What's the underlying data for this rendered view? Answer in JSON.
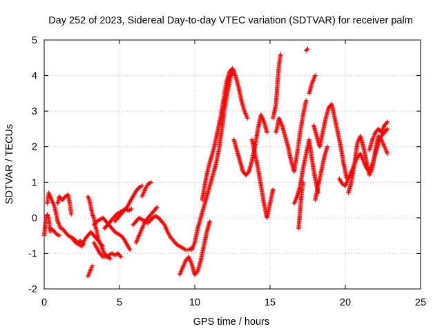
{
  "chart_data": {
    "type": "scatter",
    "title": "Day 252 of 2023, Sidereal Day-to-day VTEC variation (SDTVAR) for receiver palm",
    "xlabel": "GPS time / hours",
    "ylabel": "SDTVAR / TECUs",
    "xlim": [
      0,
      25
    ],
    "ylim": [
      -2,
      5
    ],
    "xticks": [
      0,
      5,
      10,
      15,
      20,
      25
    ],
    "yticks": [
      -2,
      -1,
      0,
      1,
      2,
      3,
      4,
      5
    ],
    "xtick_labels": [
      "0",
      "5",
      "10",
      "15",
      "20",
      "25"
    ],
    "ytick_labels": [
      "-2",
      "-1",
      "0",
      "1",
      "2",
      "3",
      "4",
      "5"
    ],
    "grid": true,
    "marker": "+",
    "color": "#ff0000",
    "series": [
      {
        "name": "t01",
        "points": [
          [
            0.0,
            -0.5
          ],
          [
            0.1,
            -0.1
          ],
          [
            0.2,
            0.1
          ],
          [
            0.3,
            0.0
          ],
          [
            0.4,
            -0.4
          ]
        ]
      },
      {
        "name": "t02",
        "points": [
          [
            0.2,
            0.4
          ],
          [
            0.3,
            0.7
          ],
          [
            0.5,
            0.5
          ],
          [
            0.7,
            0.3
          ],
          [
            0.9,
            -0.1
          ],
          [
            1.1,
            -0.3
          ]
        ]
      },
      {
        "name": "t03",
        "points": [
          [
            0.4,
            -0.3
          ],
          [
            0.6,
            -0.35
          ],
          [
            0.8,
            -0.45
          ],
          [
            1.0,
            -0.5
          ]
        ]
      },
      {
        "name": "t04",
        "points": [
          [
            0.9,
            0.4
          ],
          [
            1.0,
            0.6
          ],
          [
            1.2,
            0.5
          ],
          [
            1.4,
            0.6
          ],
          [
            1.6,
            0.65
          ],
          [
            1.7,
            0.4
          ],
          [
            1.8,
            0.1
          ]
        ]
      },
      {
        "name": "t05",
        "points": [
          [
            1.2,
            -0.3
          ],
          [
            1.4,
            -0.4
          ],
          [
            1.6,
            -0.5
          ],
          [
            1.8,
            -0.55
          ],
          [
            2.0,
            -0.6
          ],
          [
            2.2,
            -0.7
          ],
          [
            2.4,
            -0.65
          ],
          [
            2.6,
            -0.75
          ]
        ]
      },
      {
        "name": "t06",
        "points": [
          [
            1.9,
            -0.6
          ],
          [
            2.1,
            -0.7
          ],
          [
            2.3,
            -0.75
          ],
          [
            2.5,
            -0.8
          ],
          [
            2.7,
            -0.6
          ],
          [
            2.9,
            -0.5
          ],
          [
            3.1,
            -0.4
          ],
          [
            3.3,
            -0.5
          ],
          [
            3.5,
            -0.6
          ],
          [
            3.7,
            -0.7
          ],
          [
            3.9,
            -0.8
          ]
        ]
      },
      {
        "name": "t07",
        "points": [
          [
            2.9,
            0.6
          ],
          [
            3.0,
            0.5
          ],
          [
            3.1,
            0.3
          ],
          [
            3.2,
            0.1
          ],
          [
            3.3,
            0.0
          ],
          [
            3.4,
            -0.2
          ],
          [
            3.5,
            -0.4
          ],
          [
            3.6,
            -0.6
          ],
          [
            3.8,
            -0.8
          ],
          [
            4.0,
            -1.0
          ],
          [
            4.2,
            -1.1
          ],
          [
            4.4,
            -1.15
          ]
        ]
      },
      {
        "name": "t08",
        "points": [
          [
            3.3,
            -0.7
          ],
          [
            3.5,
            -0.85
          ],
          [
            3.7,
            -1.0
          ],
          [
            3.9,
            -1.1
          ],
          [
            4.1,
            -1.1
          ],
          [
            4.3,
            -1.05
          ],
          [
            4.5,
            -1.0
          ],
          [
            4.7,
            -1.05
          ],
          [
            4.9,
            -1.0
          ],
          [
            5.1,
            -1.1
          ]
        ]
      },
      {
        "name": "t09",
        "points": [
          [
            2.9,
            -1.65
          ],
          [
            3.0,
            -1.55
          ],
          [
            3.1,
            -1.45
          ],
          [
            3.2,
            -1.35
          ]
        ]
      },
      {
        "name": "t10",
        "points": [
          [
            3.3,
            -0.2
          ],
          [
            3.5,
            -0.1
          ],
          [
            3.7,
            -0.05
          ],
          [
            3.9,
            0.0
          ],
          [
            4.1,
            -0.1
          ],
          [
            4.3,
            -0.2
          ],
          [
            4.5,
            -0.3
          ],
          [
            4.7,
            -0.4
          ],
          [
            4.9,
            -0.45
          ],
          [
            5.1,
            -0.5
          ],
          [
            5.3,
            -0.6
          ],
          [
            5.5,
            -0.75
          ],
          [
            5.7,
            -0.9
          ]
        ]
      },
      {
        "name": "t11",
        "points": [
          [
            4.0,
            -0.3
          ],
          [
            4.2,
            -0.2
          ],
          [
            4.4,
            -0.1
          ],
          [
            4.6,
            0.0
          ],
          [
            4.8,
            0.1
          ],
          [
            5.0,
            0.15
          ],
          [
            5.2,
            0.2
          ],
          [
            5.4,
            0.25
          ],
          [
            5.6,
            0.2
          ],
          [
            5.8,
            0.25
          ]
        ]
      },
      {
        "name": "t12",
        "points": [
          [
            4.7,
            -0.1
          ],
          [
            4.9,
            0.0
          ],
          [
            5.1,
            0.1
          ],
          [
            5.3,
            0.2
          ],
          [
            5.5,
            0.3
          ],
          [
            5.7,
            0.45
          ],
          [
            5.9,
            0.6
          ],
          [
            6.1,
            0.75
          ],
          [
            6.3,
            0.85
          ],
          [
            6.5,
            0.9
          ]
        ]
      },
      {
        "name": "t13",
        "points": [
          [
            6.1,
            -0.7
          ],
          [
            6.3,
            -0.5
          ],
          [
            6.5,
            -0.3
          ],
          [
            6.7,
            -0.1
          ],
          [
            6.9,
            0.0
          ],
          [
            7.1,
            0.1
          ],
          [
            7.3,
            0.2
          ],
          [
            7.5,
            0.3
          ]
        ]
      },
      {
        "name": "t14",
        "points": [
          [
            6.5,
            0.6
          ],
          [
            6.7,
            0.8
          ],
          [
            6.9,
            0.95
          ],
          [
            7.1,
            1.0
          ]
        ]
      },
      {
        "name": "t15",
        "points": [
          [
            7.0,
            -0.1
          ],
          [
            7.2,
            0.0
          ],
          [
            7.4,
            0.05
          ],
          [
            7.6,
            0.0
          ],
          [
            7.8,
            -0.1
          ],
          [
            8.0,
            -0.2
          ],
          [
            8.2,
            -0.4
          ],
          [
            8.4,
            -0.55
          ],
          [
            8.6,
            -0.65
          ],
          [
            8.8,
            -0.75
          ],
          [
            9.0,
            -0.8
          ],
          [
            9.2,
            -0.85
          ],
          [
            9.4,
            -0.9
          ],
          [
            9.6,
            -0.9
          ],
          [
            9.8,
            -0.85
          ]
        ]
      },
      {
        "name": "t16",
        "points": [
          [
            5.9,
            -0.2
          ],
          [
            6.1,
            -0.1
          ],
          [
            6.3,
            0.0
          ],
          [
            6.5,
            -0.05
          ],
          [
            6.7,
            -0.1
          ],
          [
            6.9,
            -0.15
          ]
        ]
      },
      {
        "name": "t17",
        "points": [
          [
            9.0,
            -1.6
          ],
          [
            9.2,
            -1.4
          ],
          [
            9.4,
            -1.2
          ],
          [
            9.6,
            -1.1
          ],
          [
            9.8,
            -1.3
          ],
          [
            10.0,
            -1.6
          ],
          [
            10.2,
            -1.5
          ],
          [
            10.4,
            -1.2
          ],
          [
            10.6,
            -0.8
          ],
          [
            10.8,
            -0.4
          ],
          [
            11.0,
            -0.1
          ]
        ]
      },
      {
        "name": "t18",
        "points": [
          [
            9.8,
            -0.9
          ],
          [
            10.0,
            -0.7
          ],
          [
            10.2,
            -0.3
          ],
          [
            10.4,
            0.0
          ],
          [
            10.6,
            0.3
          ],
          [
            10.8,
            0.6
          ],
          [
            11.0,
            0.9
          ],
          [
            11.2,
            1.2
          ],
          [
            11.4,
            1.5
          ],
          [
            11.6,
            1.9
          ],
          [
            11.8,
            2.5
          ],
          [
            12.0,
            3.1
          ],
          [
            12.2,
            3.6
          ],
          [
            12.4,
            4.0
          ],
          [
            12.6,
            4.15
          ]
        ]
      },
      {
        "name": "t19",
        "points": [
          [
            10.5,
            0.5
          ],
          [
            10.7,
            1.0
          ],
          [
            10.9,
            1.4
          ],
          [
            11.1,
            1.7
          ],
          [
            11.3,
            2.0
          ],
          [
            11.5,
            2.4
          ],
          [
            11.7,
            2.8
          ],
          [
            11.9,
            3.3
          ],
          [
            12.1,
            3.8
          ],
          [
            12.3,
            4.1
          ],
          [
            12.5,
            4.2
          ],
          [
            12.7,
            4.0
          ],
          [
            12.9,
            3.7
          ],
          [
            13.1,
            3.3
          ],
          [
            13.3,
            3.0
          ],
          [
            13.5,
            2.8
          ]
        ]
      },
      {
        "name": "t20",
        "points": [
          [
            12.6,
            2.2
          ],
          [
            12.8,
            1.9
          ],
          [
            13.0,
            1.6
          ],
          [
            13.2,
            1.3
          ],
          [
            13.4,
            1.2
          ],
          [
            13.6,
            1.3
          ],
          [
            13.8,
            1.6
          ],
          [
            14.0,
            2.0
          ],
          [
            14.2,
            2.5
          ],
          [
            14.4,
            2.9
          ],
          [
            14.6,
            2.7
          ],
          [
            14.8,
            2.4
          ]
        ]
      },
      {
        "name": "t21",
        "points": [
          [
            13.8,
            2.2
          ],
          [
            14.0,
            1.8
          ],
          [
            14.2,
            1.4
          ],
          [
            14.4,
            0.9
          ],
          [
            14.6,
            0.4
          ],
          [
            14.8,
            0.0
          ],
          [
            15.0,
            0.4
          ],
          [
            15.2,
            0.8
          ]
        ]
      },
      {
        "name": "t22",
        "points": [
          [
            15.2,
            2.8
          ],
          [
            15.4,
            3.2
          ],
          [
            15.5,
            3.8
          ],
          [
            15.6,
            4.3
          ],
          [
            15.7,
            4.6
          ]
        ]
      },
      {
        "name": "t23",
        "points": [
          [
            15.4,
            2.4
          ],
          [
            15.6,
            2.8
          ],
          [
            15.8,
            2.6
          ],
          [
            16.0,
            2.3
          ],
          [
            16.2,
            2.0
          ],
          [
            16.4,
            1.6
          ],
          [
            16.6,
            1.3
          ],
          [
            16.8,
            1.8
          ],
          [
            17.0,
            2.4
          ],
          [
            17.2,
            2.9
          ],
          [
            17.4,
            3.3
          ]
        ]
      },
      {
        "name": "t24",
        "points": [
          [
            16.6,
            0.4
          ],
          [
            16.8,
            0.6
          ],
          [
            17.0,
            0.9
          ],
          [
            17.2,
            1.4
          ],
          [
            17.4,
            1.8
          ],
          [
            17.6,
            2.2
          ],
          [
            17.8,
            1.6
          ],
          [
            18.0,
            1.1
          ],
          [
            18.2,
            0.7
          ]
        ]
      },
      {
        "name": "t25",
        "points": [
          [
            16.9,
            -0.3
          ],
          [
            17.0,
            0.2
          ],
          [
            17.1,
            0.7
          ],
          [
            17.2,
            1.0
          ]
        ]
      },
      {
        "name": "t26",
        "points": [
          [
            17.6,
            3.5
          ],
          [
            17.8,
            3.8
          ],
          [
            18.0,
            4.0
          ]
        ]
      },
      {
        "name": "t27",
        "points": [
          [
            17.4,
            4.7
          ],
          [
            17.5,
            4.75
          ]
        ]
      },
      {
        "name": "t28",
        "points": [
          [
            17.9,
            2.6
          ],
          [
            18.1,
            2.3
          ],
          [
            18.3,
            2.0
          ],
          [
            18.5,
            2.4
          ],
          [
            18.7,
            2.8
          ],
          [
            18.9,
            3.1
          ],
          [
            19.1,
            3.2
          ],
          [
            19.3,
            2.8
          ],
          [
            19.5,
            2.4
          ],
          [
            19.7,
            2.0
          ],
          [
            19.9,
            1.5
          ],
          [
            20.1,
            1.1
          ]
        ]
      },
      {
        "name": "t29",
        "points": [
          [
            18.0,
            0.5
          ],
          [
            18.2,
            0.9
          ],
          [
            18.4,
            1.3
          ],
          [
            18.6,
            1.7
          ],
          [
            18.8,
            2.0
          ]
        ]
      },
      {
        "name": "t30",
        "points": [
          [
            19.6,
            1.1
          ],
          [
            19.8,
            0.95
          ],
          [
            20.0,
            0.9
          ],
          [
            20.2,
            1.1
          ],
          [
            20.4,
            1.3
          ],
          [
            20.6,
            1.5
          ],
          [
            20.8,
            1.7
          ],
          [
            21.0,
            1.8
          ],
          [
            21.2,
            1.6
          ],
          [
            21.4,
            1.4
          ],
          [
            21.6,
            1.3
          ],
          [
            21.8,
            1.5
          ],
          [
            22.0,
            1.8
          ],
          [
            22.2,
            2.1
          ],
          [
            22.4,
            2.3
          ],
          [
            22.6,
            2.4
          ],
          [
            22.8,
            2.5
          ]
        ]
      },
      {
        "name": "t31",
        "points": [
          [
            20.2,
            0.7
          ],
          [
            20.4,
            1.0
          ],
          [
            20.6,
            1.5
          ],
          [
            20.8,
            2.1
          ],
          [
            21.0,
            2.3
          ],
          [
            21.2,
            2.0
          ],
          [
            21.4,
            1.6
          ],
          [
            21.6,
            1.2
          ],
          [
            21.8,
            1.4
          ],
          [
            22.0,
            1.9
          ],
          [
            22.2,
            2.3
          ],
          [
            22.4,
            2.2
          ],
          [
            22.6,
            2.0
          ],
          [
            22.8,
            1.8
          ]
        ]
      },
      {
        "name": "t32",
        "points": [
          [
            21.6,
            1.9
          ],
          [
            21.8,
            2.2
          ],
          [
            22.0,
            2.4
          ],
          [
            22.2,
            2.5
          ],
          [
            22.4,
            2.4
          ],
          [
            22.6,
            2.6
          ],
          [
            22.8,
            2.7
          ]
        ]
      }
    ]
  }
}
